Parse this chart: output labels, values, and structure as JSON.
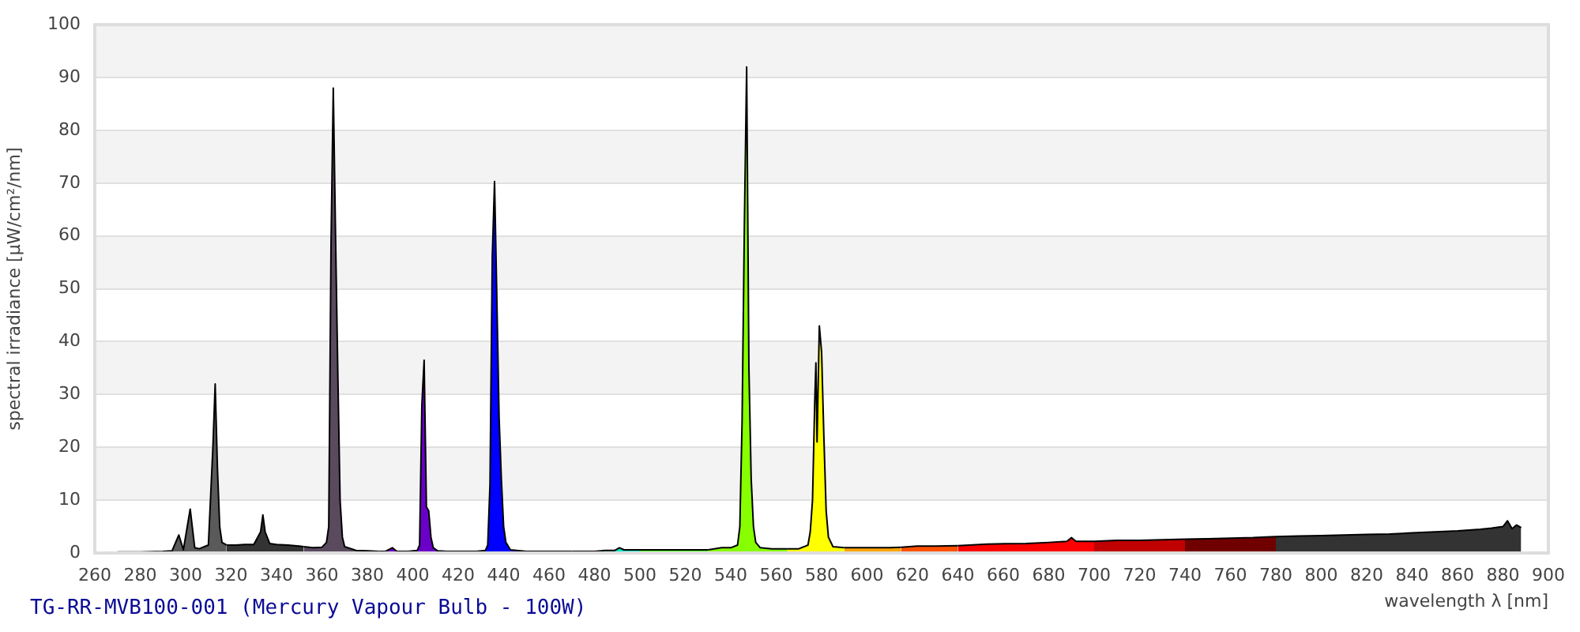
{
  "chart_data": {
    "type": "area",
    "xlabel": "wavelength λ [nm]",
    "ylabel": "spectral irradiance [µW/cm²/nm]",
    "annotations": [
      "TG-RR-MVB100-001 (Mercury Vapour Bulb - 100W)"
    ],
    "xlim": [
      260,
      900
    ],
    "xticks": [
      260,
      280,
      300,
      320,
      340,
      360,
      380,
      400,
      420,
      440,
      460,
      480,
      500,
      520,
      540,
      560,
      580,
      600,
      620,
      640,
      660,
      680,
      700,
      720,
      740,
      760,
      780,
      800,
      820,
      840,
      860,
      880,
      900
    ],
    "ylim": [
      0,
      100
    ],
    "yticks": [
      0,
      10,
      20,
      30,
      40,
      50,
      60,
      70,
      80,
      90,
      100
    ],
    "grid": "y",
    "series": [
      {
        "color": "#5a5a5a",
        "x": [
          270,
          280,
          290,
          294,
          297,
          299,
          302,
          304,
          306,
          310,
          312,
          313,
          314,
          315,
          316,
          318
        ],
        "values": [
          0.2,
          0.2,
          0.3,
          0.4,
          3.4,
          0.6,
          8.3,
          1.0,
          0.8,
          1.5,
          20,
          32,
          16,
          5,
          2.0,
          1.5
        ]
      },
      {
        "color": "#333333",
        "x": [
          318,
          322,
          326,
          330,
          333,
          334,
          335,
          337,
          340,
          345,
          350,
          352
        ],
        "values": [
          1.5,
          1.5,
          1.6,
          1.6,
          4,
          7.2,
          4,
          1.8,
          1.6,
          1.5,
          1.3,
          1.2
        ]
      },
      {
        "color": "#5a4a5e",
        "x": [
          352,
          356,
          360,
          362,
          363,
          364,
          365,
          366,
          367,
          368,
          369,
          370,
          375,
          380,
          385
        ],
        "values": [
          1.2,
          1.0,
          1.1,
          2,
          5,
          58,
          88,
          60,
          34,
          10,
          3,
          1.2,
          0.5,
          0.4,
          0.3
        ]
      },
      {
        "color": "#6a00c8",
        "x": [
          385,
          388,
          391,
          393,
          398,
          402,
          403,
          404,
          405,
          406,
          407,
          408,
          409,
          411,
          415,
          420
        ],
        "values": [
          0.3,
          0.3,
          1.0,
          0.3,
          0.3,
          0.5,
          1.5,
          28,
          36.5,
          8.7,
          8,
          3,
          1,
          0.4,
          0.3,
          0.3
        ]
      },
      {
        "color": "#0000ff",
        "x": [
          420,
          428,
          432,
          433,
          434,
          435,
          436,
          437,
          438,
          439,
          440,
          441,
          443,
          450,
          460,
          470
        ],
        "values": [
          0.3,
          0.3,
          0.5,
          1.5,
          13,
          56,
          70.3,
          48.5,
          25.7,
          14,
          5,
          2,
          0.6,
          0.3,
          0.3,
          0.3
        ]
      },
      {
        "color": "#00e6c8",
        "x": [
          470,
          480,
          485,
          489,
          491,
          493,
          497,
          500
        ],
        "values": [
          0.3,
          0.3,
          0.5,
          0.5,
          1.0,
          0.6,
          0.6,
          0.6
        ]
      },
      {
        "color": "#40ff00",
        "x": [
          500,
          510,
          520,
          530
        ],
        "values": [
          0.6,
          0.6,
          0.6,
          0.6
        ]
      },
      {
        "color": "#88ff00",
        "x": [
          530,
          536,
          540,
          543,
          544,
          545,
          546,
          547,
          548,
          549,
          550,
          551,
          553,
          558,
          565
        ],
        "values": [
          0.6,
          1.0,
          1.0,
          1.5,
          5,
          25,
          62,
          92,
          35,
          14,
          5,
          2,
          1.0,
          0.8,
          0.8
        ]
      },
      {
        "color": "#ffff00",
        "x": [
          565,
          570,
          574,
          575,
          576,
          577,
          577.5,
          578,
          579,
          580,
          581,
          582,
          583,
          585,
          590
        ],
        "values": [
          0.8,
          0.8,
          1.5,
          4,
          10,
          29,
          36,
          21,
          43,
          38,
          22,
          8,
          3,
          1.2,
          1.0
        ]
      },
      {
        "color": "#ffa500",
        "x": [
          590,
          600,
          610,
          615
        ],
        "values": [
          1.0,
          1.0,
          1.0,
          1.1
        ]
      },
      {
        "color": "#ff5000",
        "x": [
          615,
          622,
          630,
          640
        ],
        "values": [
          1.1,
          1.3,
          1.3,
          1.4
        ]
      },
      {
        "color": "#ff0000",
        "x": [
          640,
          653,
          670,
          680,
          688,
          690,
          692,
          700
        ],
        "values": [
          1.4,
          1.7,
          1.8,
          2.0,
          2.2,
          2.9,
          2.2,
          2.2
        ]
      },
      {
        "color": "#c00000",
        "x": [
          700,
          710,
          720,
          730,
          740
        ],
        "values": [
          2.2,
          2.4,
          2.4,
          2.5,
          2.6
        ]
      },
      {
        "color": "#700000",
        "x": [
          740,
          750,
          760,
          770,
          780
        ],
        "values": [
          2.6,
          2.7,
          2.8,
          2.9,
          3.1
        ]
      },
      {
        "color": "#333333",
        "x": [
          780,
          790,
          800,
          810,
          820,
          830,
          840,
          850,
          860,
          870,
          875,
          880,
          882,
          884,
          886,
          888
        ],
        "values": [
          3.1,
          3.2,
          3.3,
          3.4,
          3.5,
          3.6,
          3.8,
          4.0,
          4.2,
          4.5,
          4.7,
          5.0,
          6.1,
          4.6,
          5.3,
          4.8
        ]
      }
    ]
  }
}
